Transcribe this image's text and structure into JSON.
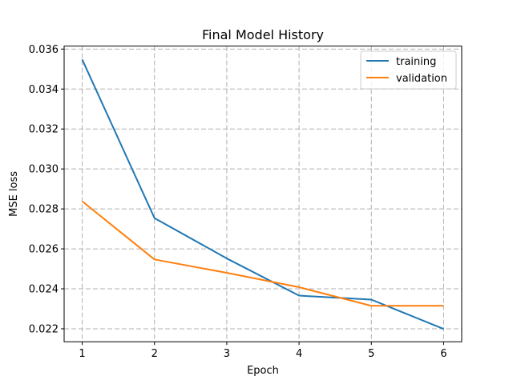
{
  "chart_data": {
    "type": "line",
    "title": "Final Model History",
    "xlabel": "Epoch",
    "ylabel": "MSE loss",
    "x": [
      1,
      2,
      3,
      4,
      5,
      6
    ],
    "xlim": [
      0.75,
      6.25
    ],
    "ylim": [
      0.02135,
      0.03615
    ],
    "xticks": [
      1,
      2,
      3,
      4,
      5,
      6
    ],
    "yticks": [
      0.022,
      0.024,
      0.026,
      0.028,
      0.03,
      0.032,
      0.034,
      0.036
    ],
    "ytick_labels": [
      "0.022",
      "0.024",
      "0.026",
      "0.028",
      "0.030",
      "0.032",
      "0.034",
      "0.036"
    ],
    "grid": true,
    "legend_position": "top-right",
    "series": [
      {
        "name": "training",
        "color": "#1f77b4",
        "values": [
          0.03548,
          0.02754,
          0.02552,
          0.02366,
          0.02346,
          0.02199
        ]
      },
      {
        "name": "validation",
        "color": "#ff7f0e",
        "values": [
          0.02838,
          0.02547,
          0.0248,
          0.02408,
          0.02315,
          0.02315
        ]
      }
    ]
  }
}
